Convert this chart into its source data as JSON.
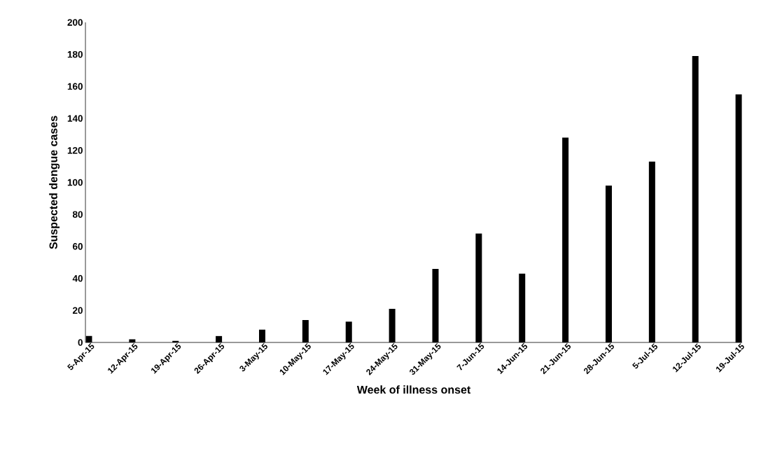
{
  "chart_data": {
    "type": "bar",
    "categories": [
      "5-Apr-15",
      "12-Apr-15",
      "19-Apr-15",
      "26-Apr-15",
      "3-May-15",
      "10-May-15",
      "17-May-15",
      "24-May-15",
      "31-May-15",
      "7-Jun-15",
      "14-Jun-15",
      "21-Jun-15",
      "28-Jun-15",
      "5-Jul-15",
      "12-Jul-15",
      "19-Jul-15"
    ],
    "values": [
      4,
      2,
      1,
      4,
      8,
      14,
      13,
      21,
      46,
      68,
      43,
      128,
      98,
      113,
      179,
      155
    ],
    "color": "#000000",
    "xlabel": "Week of illness onset",
    "ylabel": "Suspected dengue cases",
    "ylim": [
      0,
      200
    ],
    "yticks": [
      0,
      20,
      40,
      60,
      80,
      100,
      120,
      140,
      160,
      180,
      200
    ]
  }
}
